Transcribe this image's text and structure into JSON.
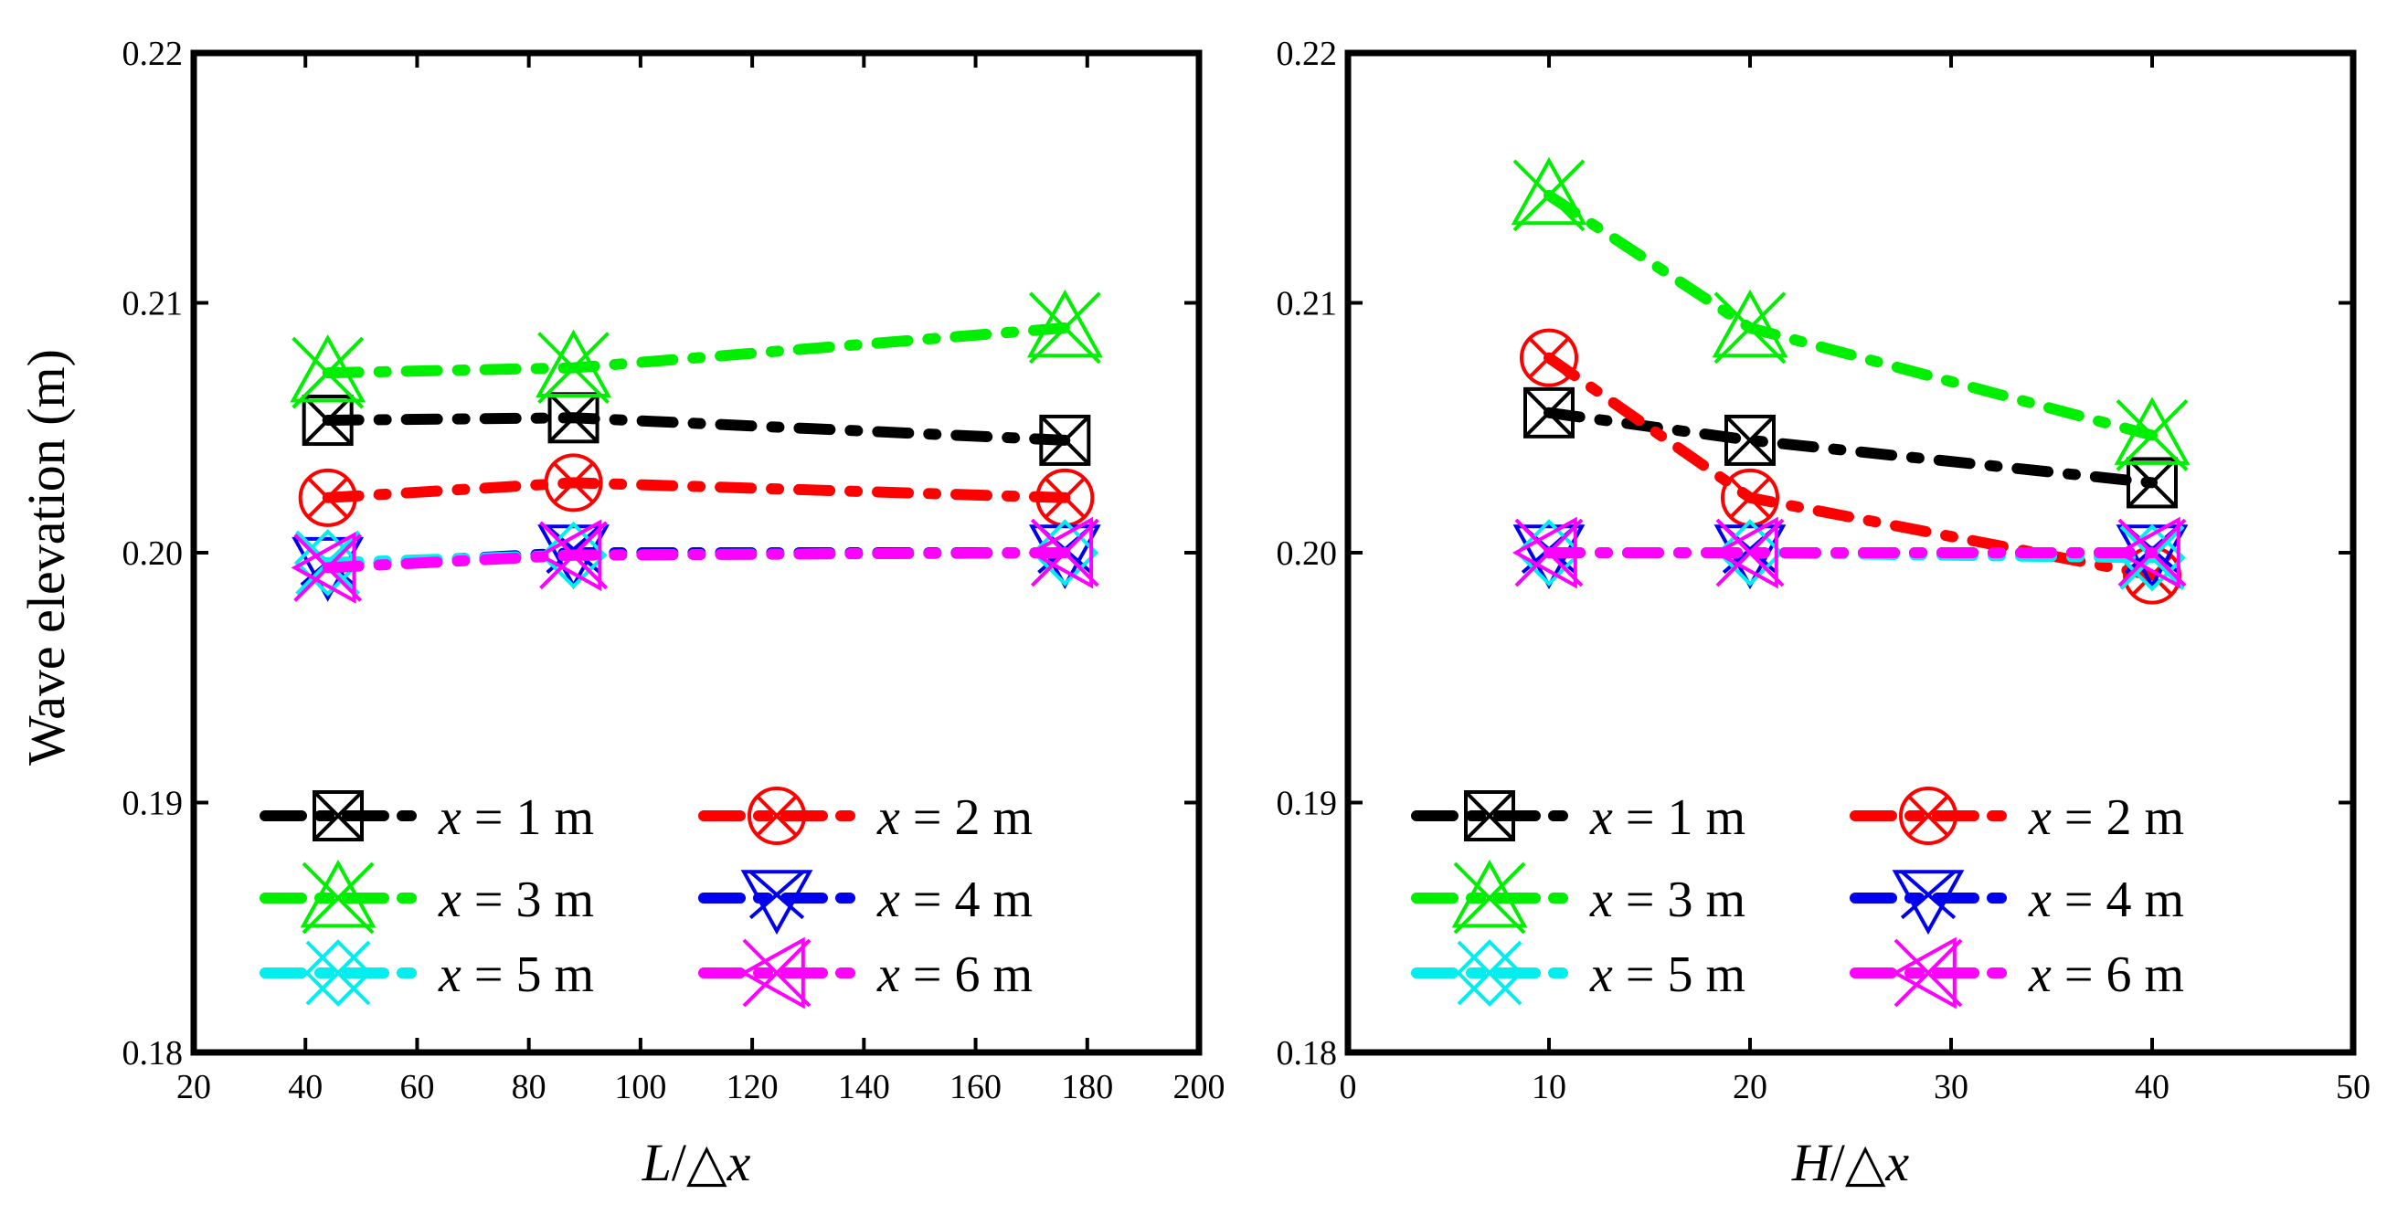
{
  "ylabel": "Wave elevation (m)",
  "chart_data": [
    {
      "type": "line",
      "xlabel_var": "L",
      "xlabel_op": "/△",
      "xlabel_var2": "x",
      "xlim": [
        20,
        200
      ],
      "xticks": [
        "20",
        "40",
        "60",
        "80",
        "100",
        "120",
        "140",
        "160",
        "180",
        "200"
      ],
      "ylim": [
        0.18,
        0.22
      ],
      "yticks": [
        "0.18",
        "0.19",
        "0.20",
        "0.21",
        "0.22"
      ],
      "x": [
        44,
        88,
        176
      ],
      "series": [
        {
          "name": "x = 1 m",
          "var": "x",
          "eq": " = 1 m",
          "color": "#000000",
          "marker": "boxx",
          "values": [
            0.2053,
            0.2054,
            0.2045
          ]
        },
        {
          "name": "x = 2 m",
          "var": "x",
          "eq": " = 2 m",
          "color": "#ff0000",
          "marker": "circlex",
          "values": [
            0.2022,
            0.2028,
            0.2022
          ]
        },
        {
          "name": "x = 3 m",
          "var": "x",
          "eq": " = 3 m",
          "color": "#00ee00",
          "marker": "triup",
          "values": [
            0.2072,
            0.2074,
            0.209
          ]
        },
        {
          "name": "x = 4 m",
          "var": "x",
          "eq": " = 4 m",
          "color": "#0000ee",
          "marker": "tridown",
          "values": [
            0.1995,
            0.2,
            0.2
          ]
        },
        {
          "name": "x = 5 m",
          "var": "x",
          "eq": " = 5 m",
          "color": "#00eeee",
          "marker": "diamondx",
          "values": [
            0.1996,
            0.1999,
            0.2
          ]
        },
        {
          "name": "x = 6 m",
          "var": "x",
          "eq": " = 6 m",
          "color": "#ff00ff",
          "marker": "trileft",
          "values": [
            0.1994,
            0.1999,
            0.2
          ]
        }
      ]
    },
    {
      "type": "line",
      "xlabel_var": "H",
      "xlabel_op": "/△",
      "xlabel_var2": "x",
      "xlim": [
        0,
        50
      ],
      "xticks": [
        "0",
        "10",
        "20",
        "30",
        "40",
        "50"
      ],
      "ylim": [
        0.18,
        0.22
      ],
      "yticks": [
        "0.18",
        "0.19",
        "0.20",
        "0.21",
        "0.22"
      ],
      "x": [
        10,
        20,
        40
      ],
      "series": [
        {
          "name": "x = 1 m",
          "var": "x",
          "eq": " = 1 m",
          "color": "#000000",
          "marker": "boxx",
          "values": [
            0.2056,
            0.2045,
            0.2028
          ]
        },
        {
          "name": "x = 2 m",
          "var": "x",
          "eq": " = 2 m",
          "color": "#ff0000",
          "marker": "circlex",
          "values": [
            0.2078,
            0.2022,
            0.1991
          ]
        },
        {
          "name": "x = 3 m",
          "var": "x",
          "eq": " = 3 m",
          "color": "#00ee00",
          "marker": "triup",
          "values": [
            0.2143,
            0.209,
            0.2047
          ]
        },
        {
          "name": "x = 4 m",
          "var": "x",
          "eq": " = 4 m",
          "color": "#0000ee",
          "marker": "tridown",
          "values": [
            0.2,
            0.2,
            0.2
          ]
        },
        {
          "name": "x = 5 m",
          "var": "x",
          "eq": " = 5 m",
          "color": "#00eeee",
          "marker": "diamondx",
          "values": [
            0.2,
            0.2,
            0.1998
          ]
        },
        {
          "name": "x = 6 m",
          "var": "x",
          "eq": " = 6 m",
          "color": "#ff00ff",
          "marker": "trileft",
          "values": [
            0.2,
            0.2,
            0.2
          ]
        }
      ]
    }
  ]
}
